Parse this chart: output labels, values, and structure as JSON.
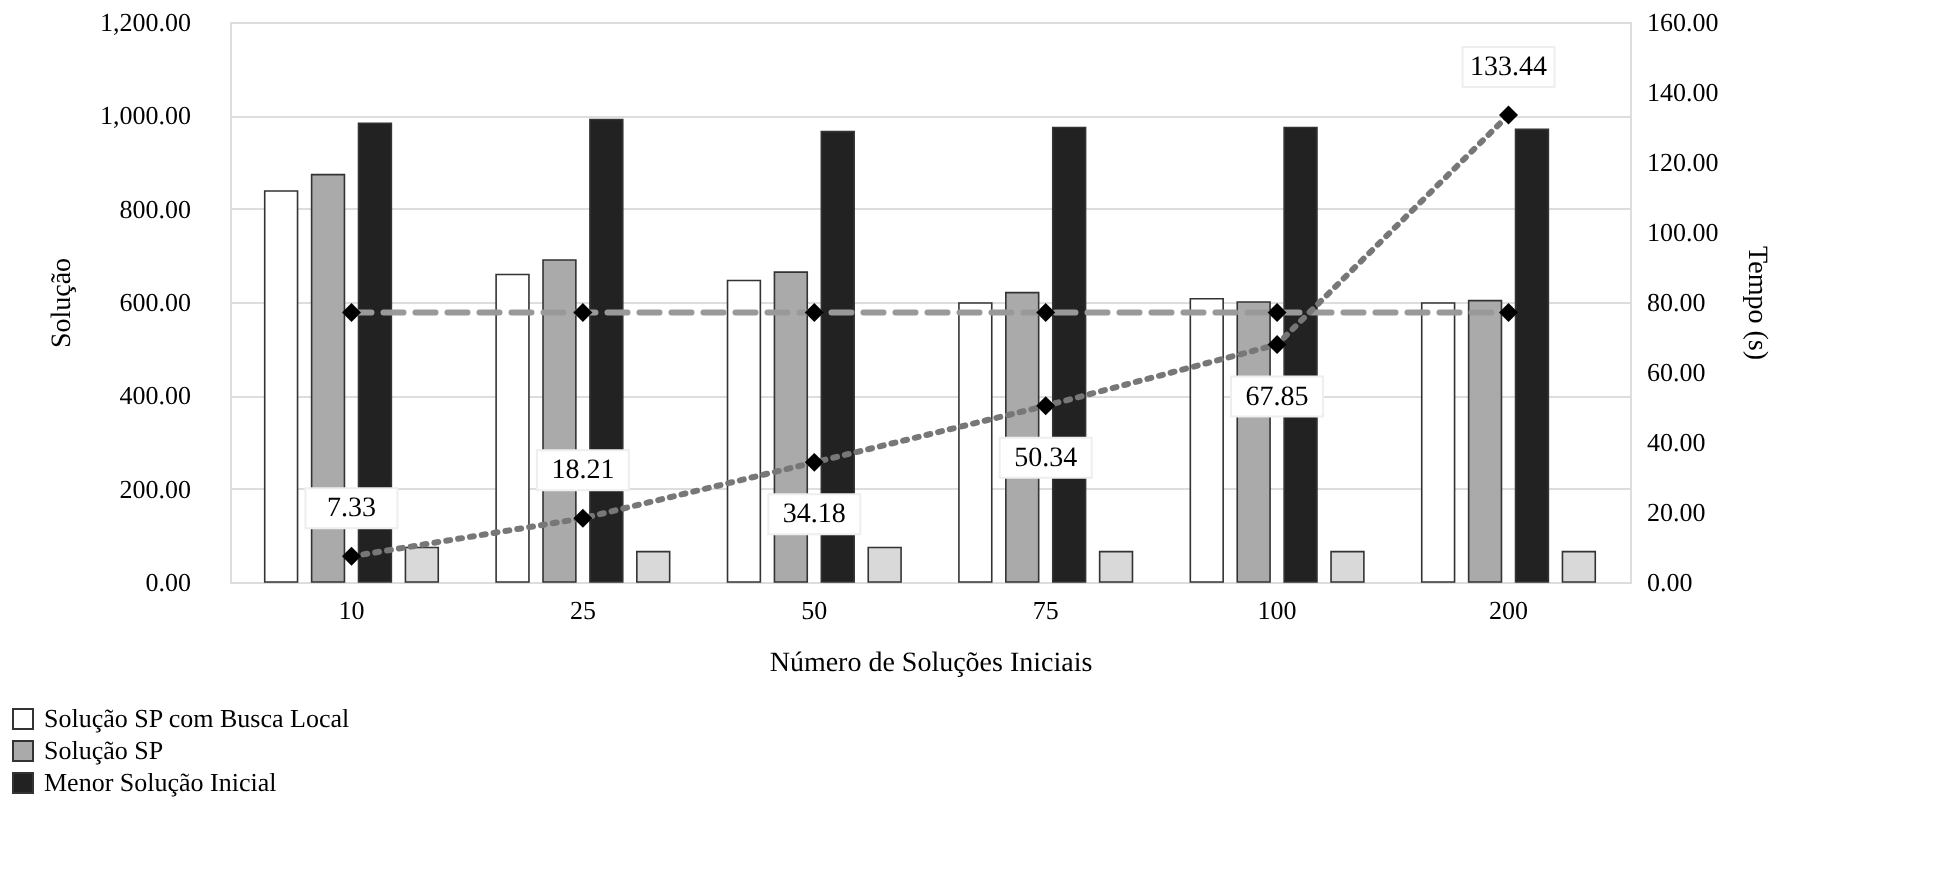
{
  "chart_data": {
    "type": "bar",
    "categories": [
      "10",
      "25",
      "50",
      "75",
      "100",
      "200"
    ],
    "xlabel": "Número de Soluções Iniciais",
    "ylabel": "Solução",
    "y2label": "Tempo (s)",
    "ylim": [
      0,
      1200
    ],
    "yticks": [
      {
        "value": 0,
        "label": "0.00"
      },
      {
        "value": 200,
        "label": "200.00"
      },
      {
        "value": 400,
        "label": "400.00"
      },
      {
        "value": 600,
        "label": "600.00"
      },
      {
        "value": 800,
        "label": "800.00"
      },
      {
        "value": 1000,
        "label": "1,000.00"
      },
      {
        "value": 1200,
        "label": "1,200.00"
      }
    ],
    "y2lim": [
      0,
      160
    ],
    "y2ticks": [
      {
        "value": 0,
        "label": "0.00"
      },
      {
        "value": 20,
        "label": "20.00"
      },
      {
        "value": 40,
        "label": "40.00"
      },
      {
        "value": 60,
        "label": "60.00"
      },
      {
        "value": 80,
        "label": "80.00"
      },
      {
        "value": 100,
        "label": "100.00"
      },
      {
        "value": 120,
        "label": "120.00"
      },
      {
        "value": 140,
        "label": "140.00"
      },
      {
        "value": 160,
        "label": "160.00"
      }
    ],
    "grid": "y",
    "legend": "bottom left",
    "series": [
      {
        "name": "Solução SP com Busca Local",
        "color": "#ffffff",
        "values": [
          838,
          659,
          646,
          598,
          607,
          598
        ]
      },
      {
        "name": "Solução SP",
        "color": "#aaaaaa",
        "values": [
          873,
          690,
          664,
          620,
          600,
          603
        ]
      },
      {
        "name": "Menor Solução Inicial",
        "color": "#222222",
        "values": [
          983,
          991,
          965,
          974,
          974,
          970
        ]
      },
      {
        "color": "#d9d9d9",
        "values": [
          74,
          65,
          74,
          65,
          65,
          65
        ]
      },
      {
        "type": "line",
        "axis": "y2",
        "color": "#999999",
        "line_style": "dashed",
        "marker": "diamond",
        "values": [
          77,
          77,
          77,
          77,
          77,
          77
        ]
      },
      {
        "type": "line",
        "axis": "y2",
        "color": "#777777",
        "line_style": "dotted",
        "marker": "diamond",
        "values": [
          7.33,
          18.21,
          34.18,
          50.34,
          67.85,
          133.44
        ],
        "value_labels": [
          "7.33",
          "18.21",
          "34.18",
          "50.34",
          "67.85",
          "133.44"
        ]
      }
    ]
  }
}
